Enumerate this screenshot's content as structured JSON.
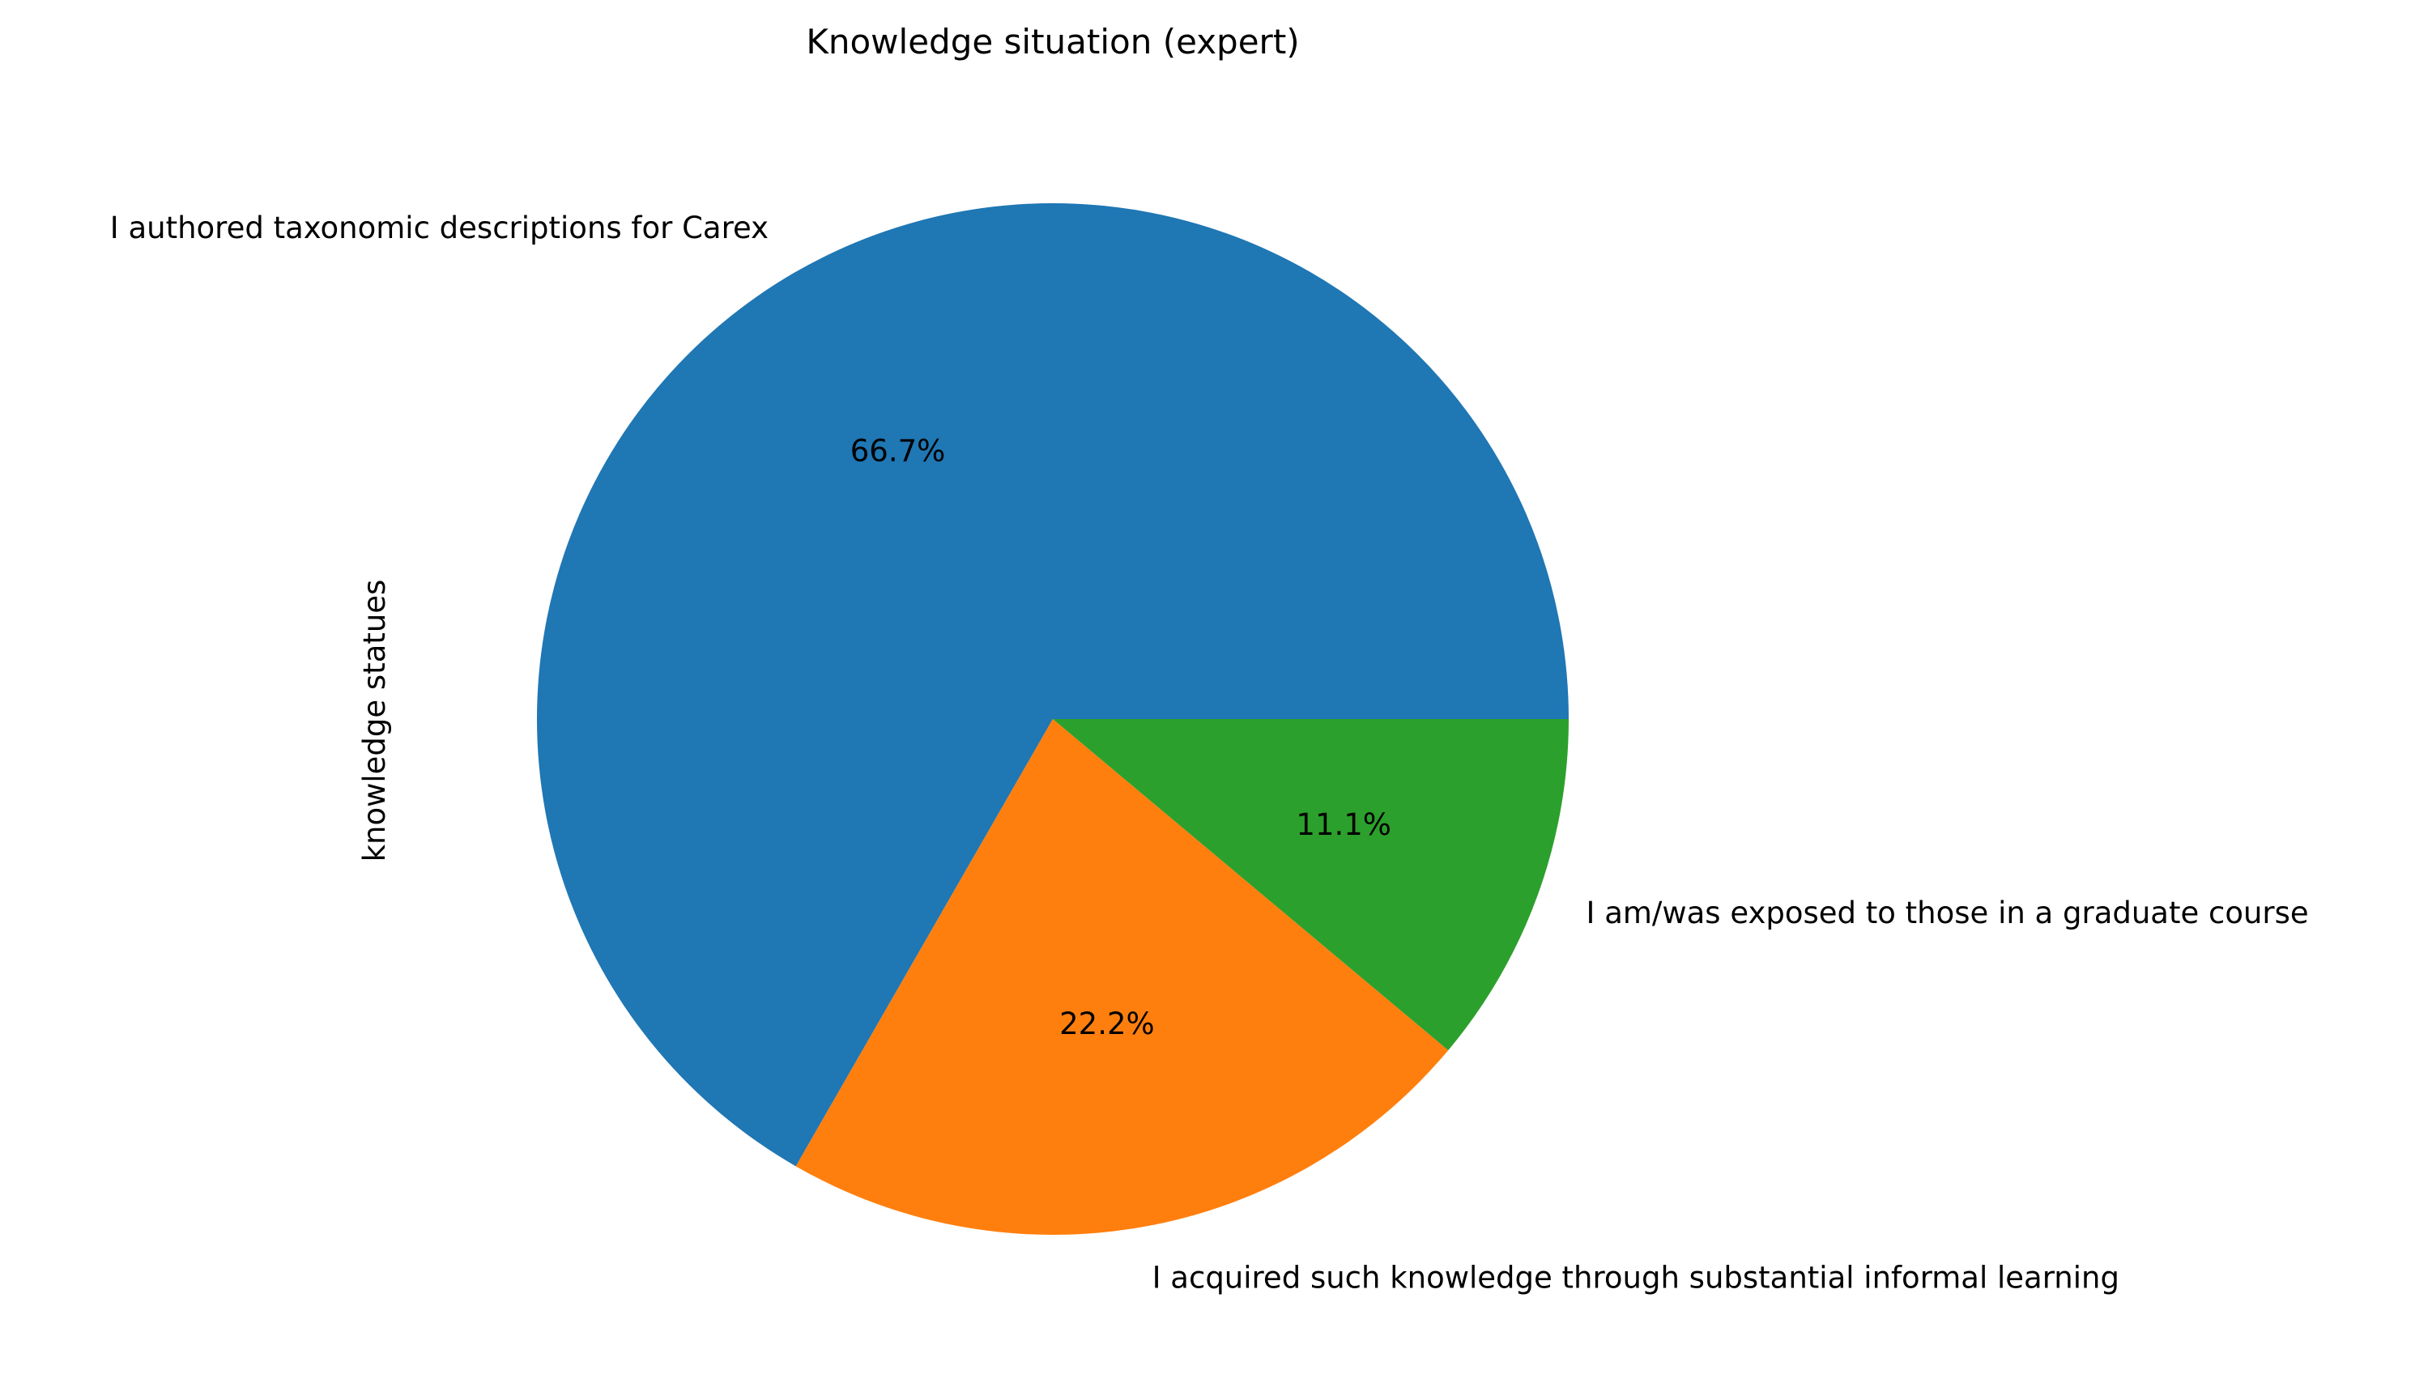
{
  "chart_data": {
    "type": "pie",
    "title": "Knowledge situation (expert)",
    "ylabel": "knowledge statues",
    "xlabel": "",
    "start_angle_deg": 0,
    "direction": "counterclockwise",
    "slices": [
      {
        "label": "I authored taxonomic descriptions for Carex",
        "value": 66.7,
        "pct_label": "66.7%",
        "color": "#1f77b4"
      },
      {
        "label": "I acquired such knowledge through substantial informal learning",
        "value": 22.2,
        "pct_label": "22.2%",
        "color": "#ff7f0e"
      },
      {
        "label": "I am/was exposed to those in a graduate course",
        "value": 11.1,
        "pct_label": "11.1%",
        "color": "#2ca02c"
      }
    ],
    "legend": "none",
    "grid": false
  }
}
